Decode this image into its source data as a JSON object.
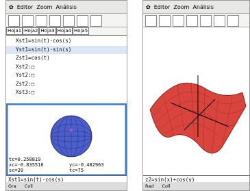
{
  "left": {
    "menu": {
      "items": [
        "Editor",
        "Zoom",
        "Análisis"
      ]
    },
    "tabs": [
      "Hoja1",
      "Hoja2",
      "Hoja3",
      "Hoja4",
      "Hoja5"
    ],
    "lines": [
      "Xst1=sin(t)·cos(s)",
      "Yst1=sin(t)·sin(s)",
      "Zst1=cos(t)",
      "Xst2:□",
      "Yst2:□",
      "Zst2:□",
      "Xst3:□"
    ],
    "graph_info": [
      "tc=0.258819",
      "xc=-0.835516",
      "yc=-0.482963",
      "sc=20",
      "tc=75"
    ],
    "entry": "Xst1=sin(t)·cos(s)",
    "status": [
      "Gra",
      "Coll"
    ]
  },
  "right": {
    "menu": {
      "items": [
        "Editor",
        "Zoom",
        "Análisis"
      ]
    },
    "entry": "z2=sin(x)+cos(y)",
    "status": [
      "Rad",
      "Coll"
    ]
  }
}
